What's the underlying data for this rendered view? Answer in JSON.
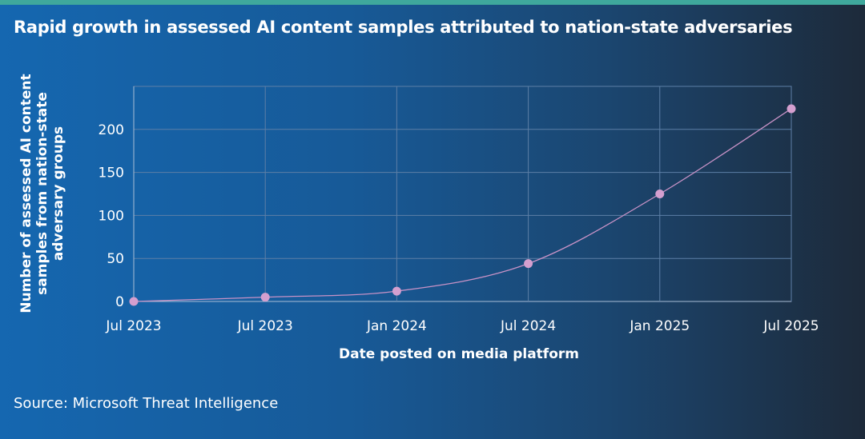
{
  "title": "Rapid growth in assessed AI content samples attributed to nation-state adversaries",
  "source": "Source: Microsoft Threat Intelligence",
  "colors": {
    "background_left": "#1567b0",
    "background_right": "#1d2a3a",
    "top_bar": "#3fa89c",
    "line": "#c792c6",
    "marker": "#d49fcf",
    "grid": "#5d7fa6"
  },
  "chart_data": {
    "type": "line",
    "title": "Rapid growth in assessed AI content samples attributed to nation-state adversaries",
    "xlabel": "Date posted on media platform",
    "ylabel_lines": [
      "Number of assessed AI content",
      "samples from nation-state",
      "adversary groups"
    ],
    "categories": [
      "Jul 2023",
      "Jul 2023",
      "Jan 2024",
      "Jul 2024",
      "Jan 2025",
      "Jul 2025"
    ],
    "values": [
      0,
      5,
      12,
      44,
      125,
      224
    ],
    "ylim": [
      0,
      250
    ],
    "yticks": [
      0,
      50,
      100,
      150,
      200
    ],
    "grid": true,
    "smooth": true,
    "markers": true
  }
}
